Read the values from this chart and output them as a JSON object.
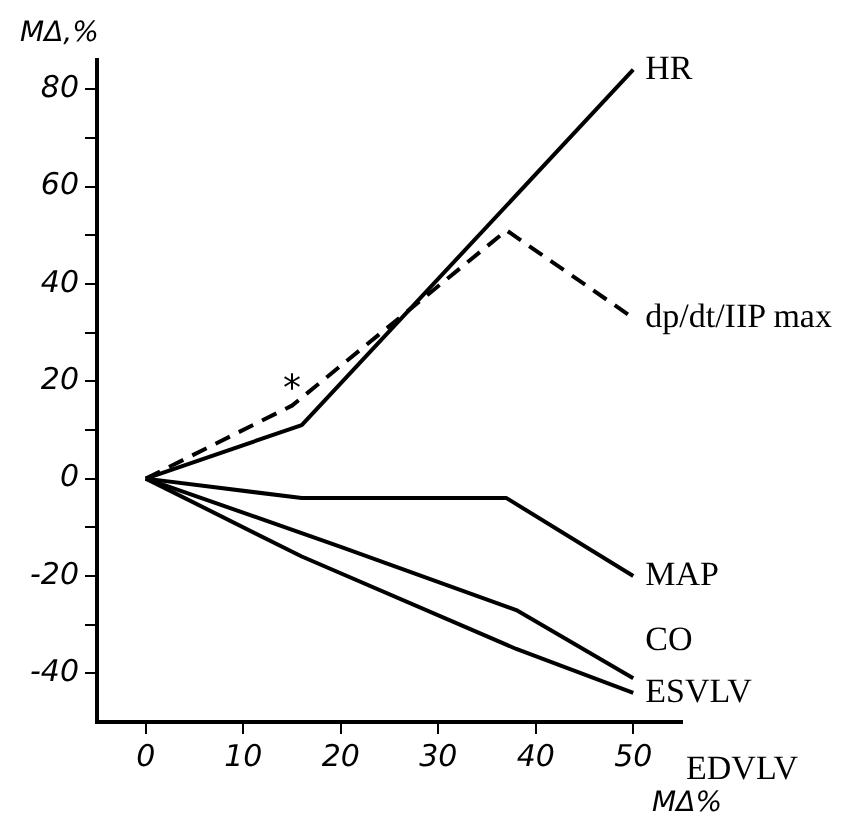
{
  "chart_data": {
    "type": "line",
    "xlabel": "MΔ%",
    "ylabel": "MΔ,%",
    "marker": "none",
    "grid": false,
    "legend": false,
    "xlim": [
      -5,
      55
    ],
    "ylim": [
      -50,
      86
    ],
    "xticks": [
      0,
      10,
      20,
      30,
      40,
      50
    ],
    "yticks": [
      {
        "value": -40,
        "label": "-40"
      },
      {
        "value": -30,
        "label": null
      },
      {
        "value": -20,
        "label": "-20"
      },
      {
        "value": -10,
        "label": null
      },
      0,
      {
        "value": 10,
        "label": null
      },
      20,
      {
        "value": 30,
        "label": null
      },
      40,
      {
        "value": 50,
        "label": null
      },
      60,
      {
        "value": 70,
        "label": null
      },
      80
    ],
    "series": [
      {
        "name": "HR",
        "color": "#000000",
        "line_style": "solid",
        "x": [
          0,
          16,
          50
        ],
        "values": [
          0,
          11,
          84
        ]
      },
      {
        "name": "dp/dt/IIP max",
        "color": "#000000",
        "line_style": "dashed",
        "x": [
          0,
          15,
          37,
          50
        ],
        "values": [
          0,
          15,
          51,
          33
        ]
      },
      {
        "name": "MAP",
        "color": "#000000",
        "line_style": "solid",
        "x": [
          0,
          16,
          37,
          50
        ],
        "values": [
          0,
          -4,
          -4,
          -20
        ]
      },
      {
        "name": "CO",
        "color": "#000000",
        "line_style": "solid",
        "x": [
          0,
          20,
          38,
          50
        ],
        "values": [
          0,
          -14,
          -27,
          -41
        ]
      },
      {
        "name": "ESVLV",
        "color": "#000000",
        "line_style": "solid",
        "x": [
          0,
          16,
          38,
          50
        ],
        "values": [
          0,
          -16,
          -35,
          -44
        ]
      }
    ],
    "annotations": [
      {
        "text": "*",
        "x": 15,
        "y": 18
      },
      "EDVLV"
    ]
  }
}
